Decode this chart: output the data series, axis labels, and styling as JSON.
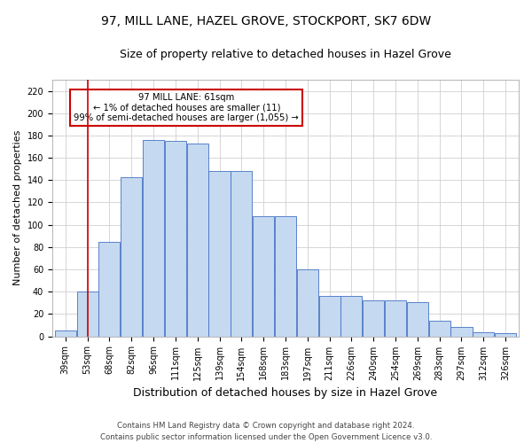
{
  "title": "97, MILL LANE, HAZEL GROVE, STOCKPORT, SK7 6DW",
  "subtitle": "Size of property relative to detached houses in Hazel Grove",
  "xlabel": "Distribution of detached houses by size in Hazel Grove",
  "ylabel": "Number of detached properties",
  "categories": [
    "39sqm",
    "53sqm",
    "68sqm",
    "82sqm",
    "96sqm",
    "111sqm",
    "125sqm",
    "139sqm",
    "154sqm",
    "168sqm",
    "183sqm",
    "197sqm",
    "211sqm",
    "226sqm",
    "240sqm",
    "254sqm",
    "269sqm",
    "283sqm",
    "297sqm",
    "312sqm",
    "326sqm"
  ],
  "bar_heights": [
    5,
    40,
    85,
    143,
    176,
    175,
    173,
    148,
    148,
    108,
    108,
    60,
    36,
    36,
    32,
    32,
    31,
    14,
    8,
    4,
    3
  ],
  "bar_color": "#c5d9f0",
  "bar_edge_color": "#4472c4",
  "vline_x": 1,
  "vline_color": "#cc0000",
  "ylim": [
    0,
    230
  ],
  "yticks": [
    0,
    20,
    40,
    60,
    80,
    100,
    120,
    140,
    160,
    180,
    200,
    220
  ],
  "annotation_text": "97 MILL LANE: 61sqm\n← 1% of detached houses are smaller (11)\n99% of semi-detached houses are larger (1,055) →",
  "annotation_box_color": "#ffffff",
  "annotation_box_edge": "#cc0000",
  "footer_text": "Contains HM Land Registry data © Crown copyright and database right 2024.\nContains public sector information licensed under the Open Government Licence v3.0.",
  "background_color": "#ffffff",
  "grid_color": "#d0d0d0",
  "title_fontsize": 10,
  "subtitle_fontsize": 9,
  "ylabel_fontsize": 8,
  "xlabel_fontsize": 9,
  "tick_fontsize": 7
}
